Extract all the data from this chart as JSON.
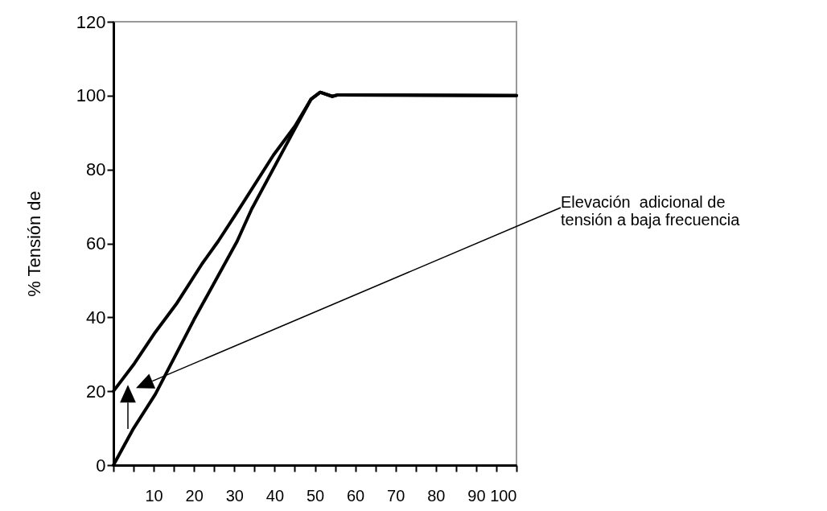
{
  "chart_data": {
    "type": "line",
    "ylabel": "% Tensión de",
    "series": [
      {
        "color": "#000000",
        "x": [
          0,
          5.2,
          10.4,
          15.6,
          22,
          26,
          30.3,
          39.7,
          45,
          49,
          51.3,
          54.3,
          55.7,
          100
        ],
        "values": [
          20,
          27.5,
          36,
          43.6,
          54.5,
          60.6,
          67.8,
          83.9,
          91.7,
          99,
          100.9,
          99.8,
          100.2,
          100
        ]
      },
      {
        "color": "#000000",
        "x": [
          0,
          4.8,
          10.4,
          20,
          30.7,
          34.3,
          45,
          49,
          51.3,
          54.3,
          55.7,
          100
        ],
        "values": [
          0,
          9.6,
          19.2,
          39.4,
          60.6,
          69.3,
          91,
          99,
          100.9,
          99.8,
          100.2,
          100
        ]
      }
    ],
    "xlim": [
      0,
      100
    ],
    "xticks": [
      {
        "value": 0,
        "label": null
      },
      {
        "value": 5,
        "label": null
      },
      10,
      {
        "value": 15,
        "label": null
      },
      20,
      {
        "value": 25,
        "label": null
      },
      30,
      {
        "value": 35,
        "label": null
      },
      40,
      {
        "value": 45,
        "label": null
      },
      50,
      {
        "value": 55,
        "label": null
      },
      60,
      {
        "value": 65,
        "label": null
      },
      70,
      {
        "value": 75,
        "label": null
      },
      80,
      {
        "value": 85,
        "label": null
      },
      90,
      {
        "value": 95,
        "label": null
      },
      100
    ],
    "ylim": [
      0,
      120
    ],
    "yticks": [
      0,
      20,
      40,
      60,
      80,
      100,
      120
    ],
    "annotations": [
      "Elevación  adicional de\ntensión a baja frecuencia"
    ],
    "grid": false,
    "legend": false,
    "marker": "none",
    "line_style": "solid"
  }
}
